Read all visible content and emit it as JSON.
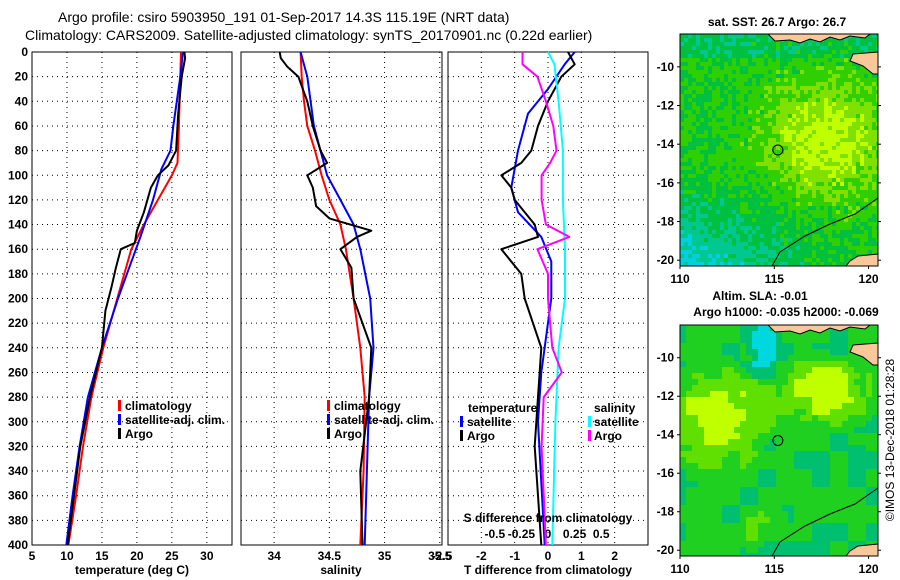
{
  "title": {
    "line1": "Argo profile: csiro 5903950_191 01-Sep-2017 14.3S 115.19E (NRT data)",
    "line2": "Climatology: CARS2009. Satellite-adjusted climatology: synTS_20170901.nc (0.22d earlier)"
  },
  "footer": "©IMOS 13-Dec-2018 01:28:28",
  "colors": {
    "climatology": "#ff0000",
    "satellite": "#0000ff",
    "argo": "#000000",
    "salinity_satellite": "#00ffff",
    "salinity_argo": "#ff00ff",
    "land": "#f9c89a"
  },
  "chart_data": [
    {
      "type": "line",
      "id": "temperature",
      "xlabel": "temperature (deg C)",
      "ylabel": "",
      "xlim": [
        5,
        33.6
      ],
      "ylim": [
        0,
        400
      ],
      "y_reversed": true,
      "grid": true,
      "xticks": [
        5,
        10,
        15,
        20,
        25,
        30
      ],
      "xtick_labels": [
        "5",
        "10",
        "15",
        "20",
        "25",
        "30"
      ],
      "yticks": [
        0,
        20,
        40,
        60,
        80,
        100,
        120,
        140,
        160,
        180,
        200,
        220,
        240,
        260,
        280,
        300,
        320,
        340,
        360,
        380,
        400
      ],
      "legend": {
        "placement": "right-lower",
        "entries": [
          "climatology",
          "satellite-adj. clim.",
          "Argo"
        ]
      },
      "series": [
        {
          "name": "climatology",
          "color": "#ff0000",
          "depth": [
            0,
            20,
            60,
            90,
            100,
            120,
            140,
            160,
            200,
            240,
            280,
            320,
            360,
            400
          ],
          "values": [
            26.3,
            26.2,
            26.0,
            25.8,
            25.0,
            23.0,
            21.0,
            19.2,
            17.2,
            15.2,
            13.5,
            12.3,
            11.3,
            10.2
          ]
        },
        {
          "name": "satellite-adj. clim.",
          "color": "#0000ff",
          "depth": [
            0,
            20,
            60,
            80,
            95,
            120,
            150,
            200,
            240,
            280,
            320,
            360,
            400
          ],
          "values": [
            26.6,
            26.2,
            25.2,
            24.8,
            23.5,
            22.3,
            20.5,
            17.3,
            15.0,
            13.0,
            11.8,
            10.8,
            9.9
          ]
        },
        {
          "name": "Argo",
          "color": "#000000",
          "depth": [
            0,
            5,
            20,
            50,
            80,
            92,
            100,
            110,
            130,
            145,
            155,
            160,
            175,
            190,
            210,
            240,
            280,
            320,
            360,
            400
          ],
          "values": [
            26.8,
            26.9,
            26.4,
            25.9,
            25.6,
            24.5,
            23.0,
            22.0,
            21.0,
            20.0,
            19.7,
            17.7,
            17.0,
            16.4,
            15.5,
            15.0,
            13.3,
            11.9,
            11.0,
            10.1
          ]
        }
      ]
    },
    {
      "type": "line",
      "id": "salinity",
      "xlabel": "salinity",
      "xlim": [
        33.7,
        35.52
      ],
      "ylim": [
        0,
        400
      ],
      "y_reversed": true,
      "grid": true,
      "xticks": [
        34,
        34.5,
        35,
        35.5
      ],
      "xtick_labels": [
        "34",
        "34.5",
        "35",
        "35.5"
      ],
      "legend": {
        "placement": "right-lower",
        "entries": [
          "climatology",
          "satellite-adj. clim.",
          "Argo"
        ]
      },
      "series": [
        {
          "name": "climatology",
          "color": "#ff0000",
          "depth": [
            0,
            20,
            40,
            60,
            80,
            100,
            120,
            140,
            160,
            200,
            240,
            280,
            340,
            400
          ],
          "values": [
            34.24,
            34.25,
            34.27,
            34.3,
            34.37,
            34.43,
            34.5,
            34.6,
            34.65,
            34.72,
            34.78,
            34.82,
            34.81,
            34.78
          ]
        },
        {
          "name": "satellite-adj. clim.",
          "color": "#0000ff",
          "depth": [
            0,
            20,
            40,
            60,
            80,
            100,
            120,
            140,
            160,
            200,
            240,
            280,
            340,
            400
          ],
          "values": [
            34.24,
            34.3,
            34.33,
            34.36,
            34.42,
            34.48,
            34.6,
            34.72,
            34.78,
            34.87,
            34.9,
            34.86,
            34.84,
            34.82
          ]
        },
        {
          "name": "Argo",
          "color": "#000000",
          "depth": [
            0,
            5,
            12,
            20,
            30,
            40,
            60,
            80,
            90,
            100,
            110,
            125,
            135,
            145,
            150,
            160,
            175,
            200,
            240,
            280,
            340,
            400
          ],
          "values": [
            34.05,
            34.06,
            34.12,
            34.22,
            34.26,
            34.3,
            34.35,
            34.42,
            34.48,
            34.3,
            34.35,
            34.38,
            34.5,
            34.88,
            34.75,
            34.6,
            34.7,
            34.72,
            34.88,
            34.86,
            34.78,
            34.8
          ]
        }
      ]
    },
    {
      "type": "line",
      "id": "difference",
      "xlabel": "T difference from climatology",
      "xlim": [
        -3,
        3
      ],
      "ylim": [
        0,
        400
      ],
      "y_reversed": true,
      "grid": true,
      "xticks": [
        -2,
        -1,
        0,
        1,
        2
      ],
      "xtick_labels": [
        "-2",
        "-1",
        "0",
        "1",
        "2"
      ],
      "left_edge_label": "-2.5",
      "secondary_axis": {
        "label": "S difference from climatology",
        "xlim": [
          -0.94,
          0.94
        ],
        "xticks": [
          -0.5,
          -0.25,
          0,
          0.25,
          0.5
        ],
        "xtick_labels": [
          "-0.5",
          "-0.25",
          "0",
          "0.25",
          "0.5"
        ]
      },
      "legend": {
        "placement": "lower",
        "temperature_header": "temperature",
        "salinity_header": "salinity",
        "entries_temperature": [
          "satellite",
          "Argo"
        ],
        "entries_salinity": [
          "satellite",
          "Argo"
        ]
      },
      "series": [
        {
          "name": "temperature satellite",
          "axis": "T",
          "color": "#0000ff",
          "depth": [
            0,
            10,
            30,
            50,
            80,
            110,
            130,
            150,
            170,
            200,
            260,
            300,
            400
          ],
          "values": [
            0.8,
            0.5,
            0.0,
            -0.6,
            -0.9,
            -1.1,
            -0.9,
            -0.2,
            0.1,
            0.1,
            -0.2,
            -0.3,
            -0.1
          ]
        },
        {
          "name": "temperature Argo",
          "axis": "T",
          "color": "#000000",
          "depth": [
            0,
            10,
            20,
            40,
            60,
            80,
            90,
            100,
            110,
            120,
            140,
            150,
            160,
            180,
            200,
            240,
            280,
            320,
            360,
            400
          ],
          "values": [
            0.6,
            0.8,
            0.4,
            0.0,
            -0.3,
            -0.5,
            -0.8,
            -1.4,
            -1.1,
            -1.0,
            -0.4,
            -0.3,
            -1.4,
            -0.8,
            -0.7,
            -0.2,
            -0.3,
            -0.4,
            -0.3,
            -0.2
          ]
        },
        {
          "name": "salinity satellite",
          "axis": "S",
          "color": "#00ffff",
          "depth": [
            0,
            10,
            40,
            80,
            120,
            160,
            200,
            240,
            300,
            400
          ],
          "values": [
            0.0,
            0.06,
            0.1,
            0.14,
            0.14,
            0.16,
            0.16,
            0.1,
            0.07,
            0.04
          ]
        },
        {
          "name": "salinity Argo",
          "axis": "S",
          "color": "#ff00ff",
          "depth": [
            0,
            10,
            20,
            40,
            60,
            80,
            90,
            100,
            120,
            140,
            150,
            160,
            180,
            200,
            240,
            260,
            280,
            320,
            400
          ],
          "values": [
            -0.24,
            -0.24,
            -0.1,
            -0.02,
            0.05,
            0.08,
            0.02,
            -0.06,
            -0.06,
            -0.02,
            0.2,
            -0.1,
            0.0,
            0.0,
            0.04,
            0.13,
            -0.04,
            -0.06,
            -0.02
          ]
        }
      ]
    }
  ],
  "maps": [
    {
      "id": "sst-map",
      "title": "sat. SST: 26.7 Argo: 26.7",
      "xticks": [
        "110",
        "115",
        "120"
      ],
      "yticks": [
        "-10",
        "-12",
        "-14",
        "-16",
        "-18",
        "-20"
      ],
      "xlim": [
        110,
        120.5
      ],
      "ylim": [
        -20.3,
        -8.3
      ],
      "argo_position": {
        "lon": 115.19,
        "lat": -14.3
      },
      "palette": [
        "#00a0ff",
        "#00d0e0",
        "#00c890",
        "#00c040",
        "#30d000",
        "#80e000",
        "#c0ff00"
      ]
    },
    {
      "id": "sla-map",
      "title_line1": "Altim. SLA: -0.01",
      "title_line2": "Argo h1000: -0.035 h2000: -0.069",
      "xticks": [
        "110",
        "115",
        "120"
      ],
      "yticks": [
        "-10",
        "-12",
        "-14",
        "-16",
        "-18",
        "-20"
      ],
      "xlim": [
        110,
        120.5
      ],
      "ylim": [
        -20.3,
        -8.3
      ],
      "argo_position": {
        "lon": 115.19,
        "lat": -14.3
      },
      "palette": [
        "#00d8e0",
        "#00c070",
        "#20d020",
        "#60e000",
        "#c0ff00"
      ]
    }
  ]
}
